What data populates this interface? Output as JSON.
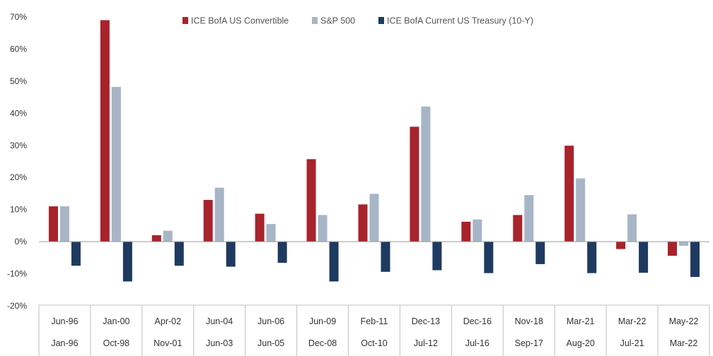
{
  "chart_data": {
    "type": "bar",
    "title": "",
    "xlabel": "",
    "ylabel": "",
    "ylim": [
      -20,
      70
    ],
    "yticks": [
      70,
      60,
      50,
      40,
      30,
      20,
      10,
      0,
      -10,
      -20
    ],
    "ytick_labels": [
      "70%",
      "60%",
      "50%",
      "40%",
      "30%",
      "20%",
      "10%",
      "0%",
      "-10%",
      "-20%"
    ],
    "grid": false,
    "legend_position": "top-center",
    "categories": [
      {
        "end": "Jun-96",
        "start": "Jan-96"
      },
      {
        "end": "Jan-00",
        "start": "Oct-98"
      },
      {
        "end": "Apr-02",
        "start": "Nov-01"
      },
      {
        "end": "Jun-04",
        "start": "Jun-03"
      },
      {
        "end": "Jun-06",
        "start": "Jun-05"
      },
      {
        "end": "Jun-09",
        "start": "Dec-08"
      },
      {
        "end": "Feb-11",
        "start": "Oct-10"
      },
      {
        "end": "Dec-13",
        "start": "Jul-12"
      },
      {
        "end": "Dec-16",
        "start": "Jul-16"
      },
      {
        "end": "Nov-18",
        "start": "Sep-17"
      },
      {
        "end": "Mar-21",
        "start": "Aug-20"
      },
      {
        "end": "Mar-22",
        "start": "Jul-21"
      },
      {
        "end": "May-22",
        "start": "Mar-22"
      }
    ],
    "series": [
      {
        "name": "ICE BofA US Convertible",
        "color": "#a8232b",
        "values": [
          11,
          69,
          2,
          13,
          8.7,
          25.7,
          11.6,
          35.8,
          6.2,
          8.3,
          29.9,
          -2.3,
          -4.4
        ]
      },
      {
        "name": "S&P 500",
        "color": "#a7b5c7",
        "values": [
          11,
          48.2,
          3.4,
          16.8,
          5.5,
          8.3,
          14.9,
          42.1,
          6.9,
          14.5,
          19.7,
          8.5,
          -1.3
        ]
      },
      {
        "name": "ICE BofA Current US Treasury (10-Y)",
        "color": "#1f3a60",
        "values": [
          -7.5,
          -12.4,
          -7.5,
          -7.8,
          -6.6,
          -12.4,
          -9.4,
          -8.9,
          -9.8,
          -7,
          -9.8,
          -9.7,
          -11
        ]
      }
    ]
  }
}
